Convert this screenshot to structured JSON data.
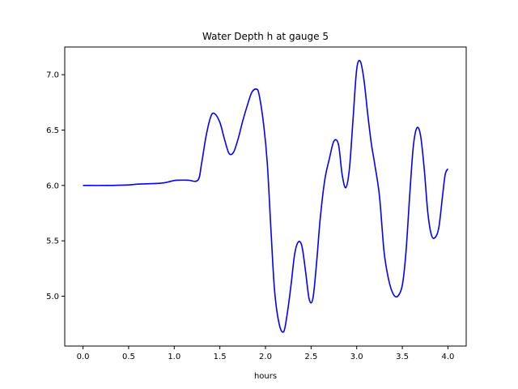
{
  "chart_data": {
    "type": "line",
    "title": "Water Depth h at gauge 5",
    "xlabel": "hours",
    "ylabel": "",
    "xlim": [
      -0.2,
      4.2
    ],
    "ylim": [
      4.55,
      7.25
    ],
    "xticks": [
      0.0,
      0.5,
      1.0,
      1.5,
      2.0,
      2.5,
      3.0,
      3.5,
      4.0
    ],
    "xtick_labels": [
      "0.0",
      "0.5",
      "1.0",
      "1.5",
      "2.0",
      "2.5",
      "3.0",
      "3.5",
      "4.0"
    ],
    "yticks": [
      5.0,
      5.5,
      6.0,
      6.5,
      7.0
    ],
    "ytick_labels": [
      "5.0",
      "5.5",
      "6.0",
      "6.5",
      "7.0"
    ],
    "grid": false,
    "legend": "none",
    "series": [
      {
        "color": "#0000ff",
        "x": [
          0.0,
          0.25,
          0.5,
          0.6,
          0.85,
          0.95,
          1.0,
          1.05,
          1.15,
          1.26,
          1.3,
          1.35,
          1.4,
          1.44,
          1.5,
          1.55,
          1.6,
          1.65,
          1.7,
          1.75,
          1.8,
          1.85,
          1.9,
          1.93,
          1.98,
          2.02,
          2.06,
          2.1,
          2.15,
          2.2,
          2.24,
          2.28,
          2.32,
          2.36,
          2.4,
          2.44,
          2.48,
          2.52,
          2.56,
          2.6,
          2.65,
          2.7,
          2.75,
          2.8,
          2.84,
          2.88,
          2.92,
          2.96,
          3.0,
          3.04,
          3.08,
          3.12,
          3.16,
          3.2,
          3.25,
          3.3,
          3.35,
          3.4,
          3.45,
          3.5,
          3.54,
          3.58,
          3.62,
          3.66,
          3.7,
          3.74,
          3.78,
          3.82,
          3.86,
          3.9,
          3.94,
          3.97,
          4.0
        ],
        "y": [
          6.0,
          6.0,
          6.005,
          6.012,
          6.02,
          6.035,
          6.045,
          6.048,
          6.048,
          6.048,
          6.2,
          6.45,
          6.62,
          6.65,
          6.57,
          6.42,
          6.29,
          6.3,
          6.42,
          6.58,
          6.72,
          6.84,
          6.87,
          6.82,
          6.55,
          6.2,
          5.6,
          5.05,
          4.75,
          4.68,
          4.85,
          5.1,
          5.38,
          5.49,
          5.45,
          5.22,
          4.97,
          4.98,
          5.3,
          5.7,
          6.05,
          6.24,
          6.4,
          6.37,
          6.1,
          5.98,
          6.15,
          6.6,
          7.05,
          7.12,
          6.95,
          6.65,
          6.38,
          6.18,
          5.9,
          5.4,
          5.15,
          5.02,
          5.0,
          5.1,
          5.4,
          5.9,
          6.35,
          6.52,
          6.45,
          6.15,
          5.75,
          5.55,
          5.53,
          5.62,
          5.9,
          6.1,
          6.15
        ]
      }
    ]
  }
}
